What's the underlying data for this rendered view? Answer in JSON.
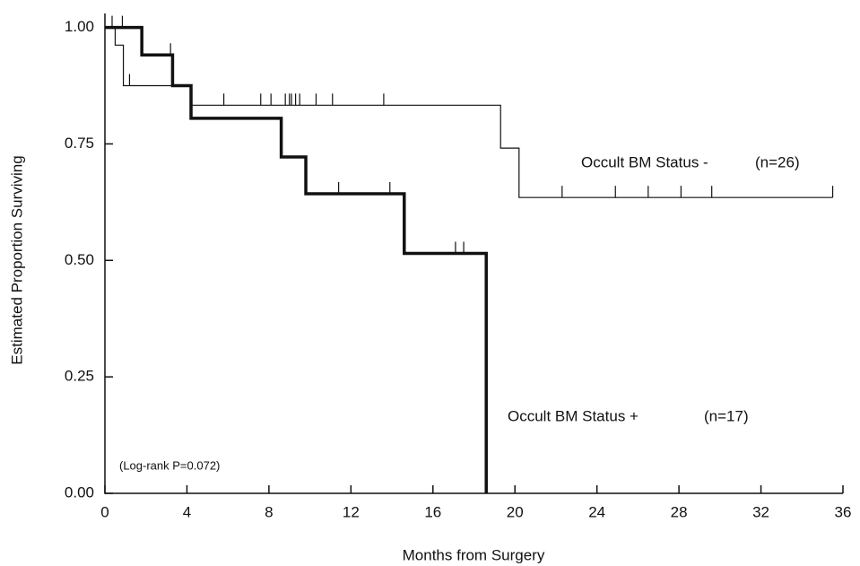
{
  "chart_data": {
    "type": "step",
    "x_label": "Months from Surgery",
    "y_label": "Estimated Proportion Surviving",
    "xlim": [
      0,
      36
    ],
    "ylim": [
      0,
      1.03
    ],
    "xticks": [
      0,
      4,
      8,
      12,
      16,
      20,
      24,
      28,
      32,
      36
    ],
    "yticks": [
      {
        "value": 0,
        "label": "0.00"
      },
      {
        "value": 0.25,
        "label": "0.25"
      },
      {
        "value": 0.5,
        "label": "0.50"
      },
      {
        "value": 0.75,
        "label": "0.75"
      },
      {
        "value": 1,
        "label": "1.00"
      }
    ],
    "series": [
      {
        "name": "Occult BM Status -",
        "color": "#111111",
        "line_width": 1.2,
        "x": [
          0,
          0.5,
          0.9,
          4.2,
          19.3,
          20.2,
          35.5
        ],
        "values": [
          1,
          0.962,
          0.875,
          0.833,
          0.741,
          0.635,
          0.635
        ],
        "censored": {
          "x": [
            0.35,
            0.85,
            1.2,
            5.8,
            7.6,
            8.1,
            8.8,
            9.0,
            9.1,
            9.3,
            9.5,
            10.3,
            11.1,
            13.6,
            22.3,
            24.9,
            26.5,
            28.1,
            29.6,
            35.5
          ],
          "values": [
            1,
            1,
            0.875,
            0.833,
            0.833,
            0.833,
            0.833,
            0.833,
            0.833,
            0.833,
            0.833,
            0.833,
            0.833,
            0.833,
            0.635,
            0.635,
            0.635,
            0.635,
            0.635,
            0.635
          ]
        },
        "count_label": "(n=26)"
      },
      {
        "name": "Occult BM Status +",
        "color": "#111111",
        "line_width": 3.5,
        "x": [
          0,
          1.8,
          3.3,
          4.2,
          8.6,
          9.8,
          14.6,
          18.6
        ],
        "values": [
          1,
          0.941,
          0.875,
          0.805,
          0.722,
          0.643,
          0.515,
          0
        ],
        "censored": {
          "x": [
            3.2,
            11.4,
            13.9,
            17.1,
            17.5
          ],
          "values": [
            0.941,
            0.643,
            0.643,
            0.515,
            0.515
          ]
        },
        "count_label": "(n=17)"
      }
    ],
    "annotation": "(Log-rank P=0.072)"
  }
}
